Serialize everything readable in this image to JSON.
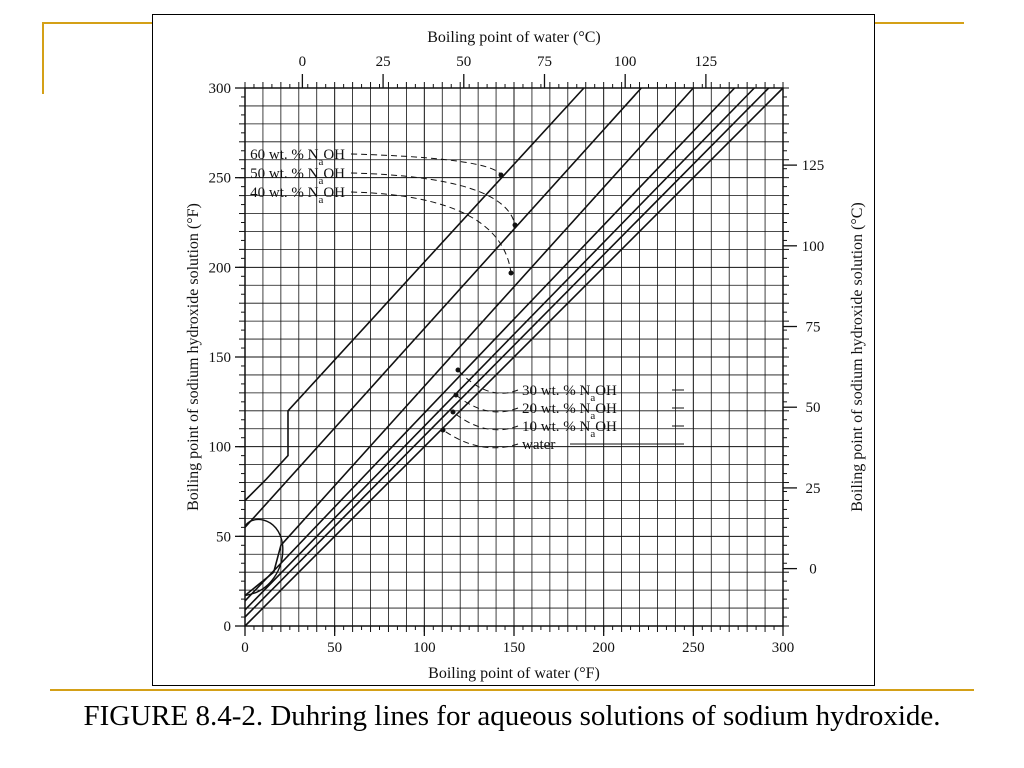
{
  "caption": "FIGURE 8.4-2. Duhring lines for aqueous solutions of sodium hydroxide.",
  "colors": {
    "accent": "#d4a017",
    "ink": "#111111"
  },
  "chart_data": {
    "type": "line",
    "title": "",
    "xlabel": "Boiling point of water (°F)",
    "ylabel": "Boiling point of sodium hydroxide solution (°F)",
    "x2label": "Boiling point of water (°C)",
    "y2label": "Boiling point of sodium hydroxide solution (°C)",
    "xlim": [
      0,
      300
    ],
    "ylim": [
      0,
      300
    ],
    "grid": true,
    "x_ticks": [
      0,
      50,
      100,
      150,
      200,
      250,
      300
    ],
    "y_ticks": [
      0,
      50,
      100,
      150,
      200,
      250,
      300
    ],
    "x2_ticks": [
      0,
      25,
      50,
      75,
      100,
      125
    ],
    "y2_ticks": [
      0,
      25,
      50,
      75,
      100,
      125
    ],
    "series": [
      {
        "name": "60 wt. % NaOH",
        "label_main": "60 wt. % N",
        "label_sub": "a",
        "label_end": "OH",
        "points": [
          [
            0,
            70
          ],
          [
            12,
            82
          ],
          [
            24,
            95
          ],
          [
            24,
            120
          ],
          [
            189,
            300
          ]
        ]
      },
      {
        "name": "50 wt. % NaOH",
        "label_main": "50 wt. % N",
        "label_sub": "a",
        "label_end": "OH",
        "points": [
          [
            0,
            55
          ],
          [
            221,
            300
          ]
        ]
      },
      {
        "name": "40 wt. % NaOH",
        "label_main": "40 wt. % N",
        "label_sub": "a",
        "label_end": "OH",
        "points": [
          [
            0,
            17
          ],
          [
            16,
            30
          ],
          [
            20,
            45
          ],
          [
            250,
            300
          ]
        ]
      },
      {
        "name": "30 wt. % NaOH",
        "label_main": "30 wt. % N",
        "label_sub": "a",
        "label_end": "OH",
        "points": [
          [
            0,
            14
          ],
          [
            273,
            300
          ]
        ]
      },
      {
        "name": "20 wt. % NaOH",
        "label_main": "20 wt. % N",
        "label_sub": "a",
        "label_end": "OH",
        "points": [
          [
            0,
            9
          ],
          [
            284,
            300
          ]
        ]
      },
      {
        "name": "10 wt. % NaOH",
        "label_main": "10 wt. % N",
        "label_sub": "a",
        "label_end": "OH",
        "points": [
          [
            0,
            5
          ],
          [
            292,
            300
          ]
        ]
      },
      {
        "name": "water",
        "label_main": "water",
        "label_sub": "",
        "label_end": "",
        "points": [
          [
            0,
            0
          ],
          [
            300,
            300
          ]
        ]
      }
    ]
  }
}
